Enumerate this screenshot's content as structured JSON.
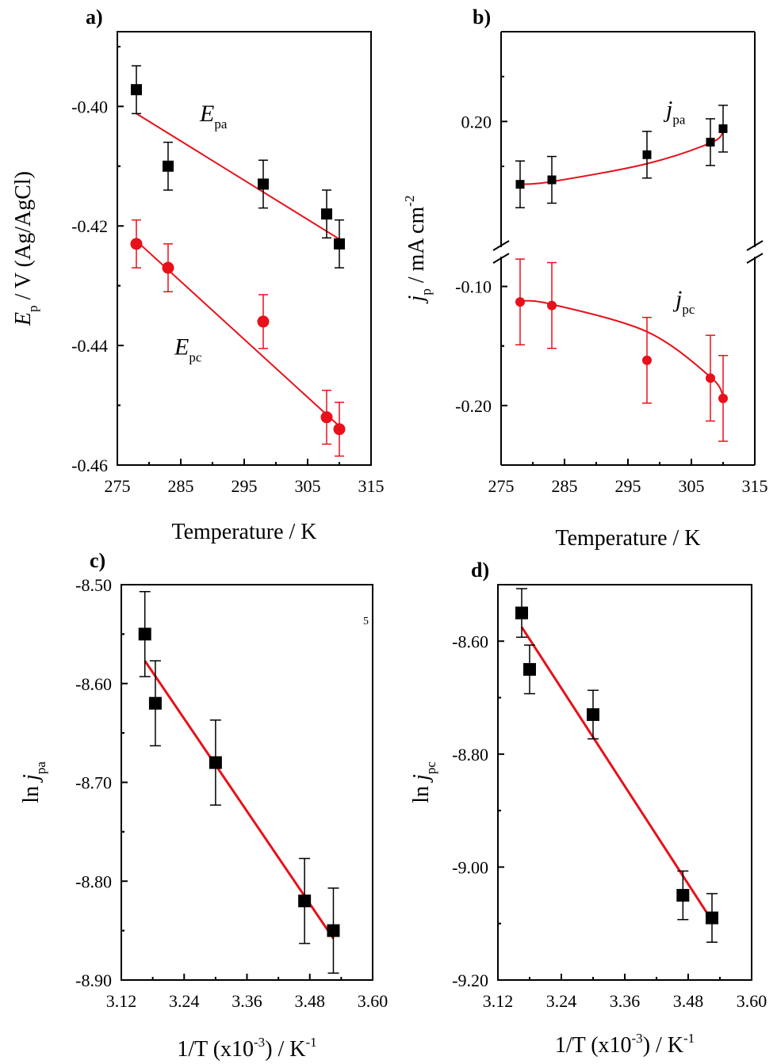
{
  "colors": {
    "anodic": "#000000",
    "cathodic": "#e8101a",
    "fit_line": "#e8101a",
    "frame": "#000000"
  },
  "chart_data": [
    {
      "panel": "a)",
      "type": "scatter",
      "xlabel": "Temperature / K",
      "ylabel": {
        "main": "E",
        "sub": "p",
        "rest": " / V (Ag/AgCl)"
      },
      "xlim": [
        275,
        315
      ],
      "ylim": [
        -0.46,
        -0.3875
      ],
      "xticks": [
        275,
        285,
        295,
        305,
        315
      ],
      "xtick_labels": [
        "275",
        "285",
        "295",
        "305",
        "315"
      ],
      "yticks": [
        -0.4,
        -0.42,
        -0.44,
        -0.46
      ],
      "ytick_labels": [
        "-0.40",
        "-0.42",
        "-0.44",
        "-0.46"
      ],
      "series": [
        {
          "name": "E_pa",
          "marker": "square",
          "color": "#000000",
          "x": [
            278,
            283,
            298,
            308,
            310
          ],
          "y": [
            -0.3972,
            -0.41,
            -0.413,
            -0.418,
            -0.423
          ],
          "err": [
            0.004,
            0.004,
            0.004,
            0.004,
            0.004
          ],
          "fit": {
            "kind": "linear",
            "x": [
              278,
              310
            ],
            "y": [
              -0.4012,
              -0.4222
            ]
          }
        },
        {
          "name": "E_pc",
          "marker": "circle",
          "color": "#e8101a",
          "x": [
            278,
            283,
            298,
            308,
            310
          ],
          "y": [
            -0.423,
            -0.427,
            -0.436,
            -0.452,
            -0.454
          ],
          "err": [
            0.004,
            0.004,
            0.0045,
            0.0045,
            0.0045
          ],
          "fit": {
            "kind": "linear",
            "x": [
              278,
              310
            ],
            "y": [
              -0.4225,
              -0.4535
            ]
          }
        }
      ],
      "annotations": [
        {
          "main": "E",
          "sub": "pa",
          "x": 288,
          "y": -0.4025
        },
        {
          "main": "E",
          "sub": "pc",
          "x": 284,
          "y": -0.4415
        }
      ]
    },
    {
      "panel": "b)",
      "type": "scatter",
      "broken_axis": true,
      "xlabel": "Temperature / K",
      "ylabel": {
        "main": "j",
        "sub": "p",
        "rest": " / mA cm",
        "sup": "-2"
      },
      "xlim": [
        275,
        315
      ],
      "upper": {
        "ylim": [
          0.06,
          0.3
        ],
        "yticks": [
          0.2
        ],
        "ytick_labels": [
          "0.20"
        ]
      },
      "lower": {
        "ylim": [
          -0.25,
          -0.075
        ],
        "yticks": [
          -0.1,
          -0.2
        ],
        "ytick_labels": [
          "-0.10",
          "-0.20"
        ]
      },
      "xticks": [
        275,
        285,
        295,
        305,
        315
      ],
      "xtick_labels": [
        "275",
        "285",
        "295",
        "305",
        "315"
      ],
      "series": [
        {
          "name": "j_pa",
          "marker": "square",
          "color": "#000000",
          "part": "upper",
          "x": [
            278,
            283,
            298,
            308,
            310
          ],
          "y": [
            0.13,
            0.135,
            0.163,
            0.177,
            0.192
          ],
          "err": [
            0.026,
            0.026,
            0.026,
            0.026,
            0.026
          ],
          "fit": {
            "kind": "exp",
            "x": [
              278,
              283,
              298,
              308,
              310
            ],
            "y": [
              0.13,
              0.133,
              0.153,
              0.176,
              0.188
            ]
          }
        },
        {
          "name": "j_pc",
          "marker": "circle",
          "color": "#e8101a",
          "part": "lower",
          "x": [
            278,
            283,
            298,
            308,
            310
          ],
          "y": [
            -0.113,
            -0.116,
            -0.162,
            -0.177,
            -0.194
          ],
          "err": [
            0.036,
            0.036,
            0.036,
            0.036,
            0.036
          ],
          "fit": {
            "kind": "exp",
            "x": [
              278,
              283,
              298,
              308,
              310
            ],
            "y": [
              -0.112,
              -0.115,
              -0.138,
              -0.176,
              -0.192
            ]
          }
        }
      ],
      "annotations": [
        {
          "main": "j",
          "sub": "pa",
          "x": 301,
          "y": 0.205
        },
        {
          "main": "j",
          "sub": "pc",
          "x": 302.5,
          "y": -0.117
        }
      ]
    },
    {
      "panel": "c)",
      "type": "scatter",
      "xlabel": {
        "main": "1/T (x10",
        "sup": "-3",
        "rest": ") / K",
        "sup2": "-1"
      },
      "ylabel": {
        "main": "ln",
        "ital": "j",
        "sub": "pa"
      },
      "xlim": [
        3.12,
        3.6
      ],
      "ylim": [
        -8.9,
        -8.5
      ],
      "xticks": [
        3.12,
        3.24,
        3.36,
        3.48,
        3.6
      ],
      "xtick_labels": [
        "3.12",
        "3.24",
        "3.36",
        "3.48",
        "3.60"
      ],
      "yticks": [
        -8.5,
        -8.6,
        -8.7,
        -8.8,
        -8.9
      ],
      "ytick_labels": [
        "-8.50",
        "-8.60",
        "-8.70",
        "-8.80",
        "-8.90"
      ],
      "series": [
        {
          "name": "ln j_pa",
          "marker": "square",
          "color": "#000000",
          "x": [
            3.165,
            3.185,
            3.3,
            3.47,
            3.525
          ],
          "y": [
            -8.55,
            -8.62,
            -8.68,
            -8.82,
            -8.85
          ],
          "err": [
            0.043,
            0.043,
            0.043,
            0.043,
            0.043
          ],
          "fit": {
            "kind": "linear",
            "x": [
              3.165,
              3.525
            ],
            "y": [
              -8.577,
              -8.858
            ]
          }
        }
      ],
      "stray_text": "5"
    },
    {
      "panel": "d)",
      "type": "scatter",
      "xlabel": {
        "main": "1/T (x10",
        "sup": "-3",
        "rest": ") / K",
        "sup2": "-1"
      },
      "ylabel": {
        "main": "ln",
        "ital": "j",
        "sub": "pc"
      },
      "xlim": [
        3.12,
        3.6
      ],
      "ylim": [
        -9.2,
        -8.5
      ],
      "xticks": [
        3.12,
        3.24,
        3.36,
        3.48,
        3.6
      ],
      "xtick_labels": [
        "3.12",
        "3.24",
        "3.36",
        "3.48",
        "3.60"
      ],
      "yticks": [
        -8.6,
        -8.8,
        -9.0,
        -9.2
      ],
      "ytick_labels": [
        "-8.60",
        "-8.80",
        "-9.00",
        "-9.20"
      ],
      "series": [
        {
          "name": "ln j_pc",
          "marker": "square",
          "color": "#000000",
          "x": [
            3.165,
            3.18,
            3.3,
            3.47,
            3.525
          ],
          "y": [
            -8.55,
            -8.65,
            -8.73,
            -9.05,
            -9.09
          ],
          "err": [
            0.043,
            0.043,
            0.043,
            0.043,
            0.043
          ],
          "fit": {
            "kind": "linear",
            "x": [
              3.165,
              3.525
            ],
            "y": [
              -8.575,
              -9.095
            ]
          }
        }
      ]
    }
  ]
}
